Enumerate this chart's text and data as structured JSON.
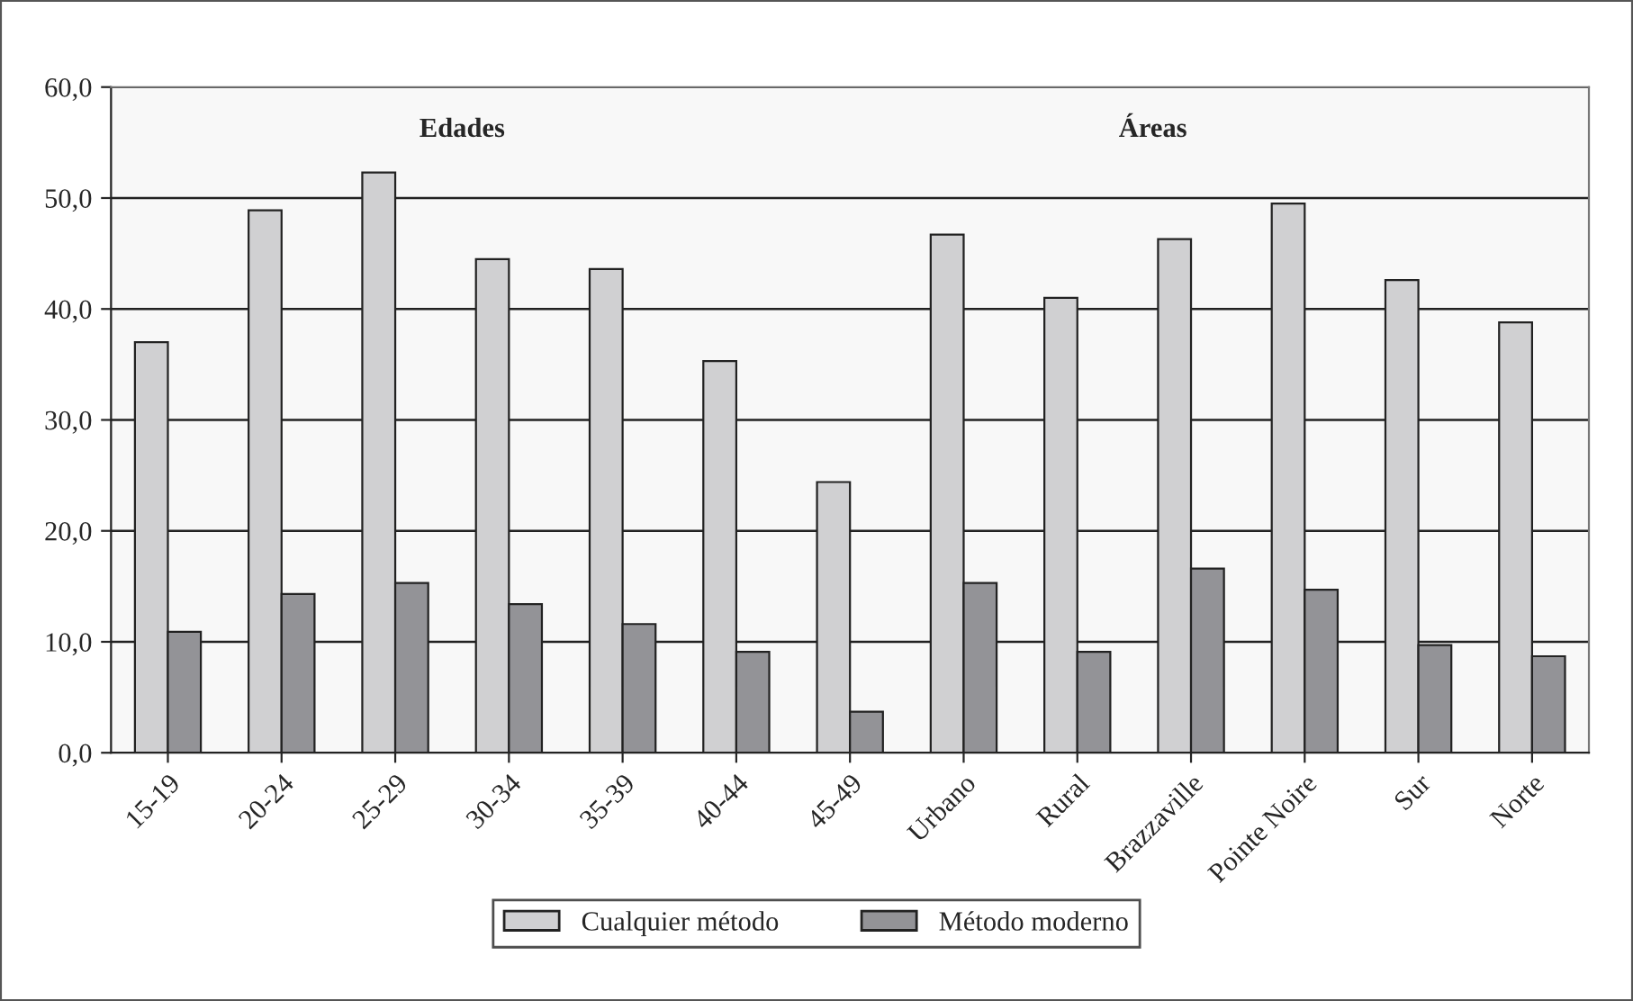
{
  "chart_data": {
    "type": "bar",
    "categories": [
      "15-19",
      "20-24",
      "25-29",
      "30-34",
      "35-39",
      "40-44",
      "45-49",
      "Urbano",
      "Rural",
      "Brazzaville",
      "Pointe Noire",
      "Sur",
      "Norte"
    ],
    "series": [
      {
        "name": "Cualquier método",
        "color": "#d0d0d2",
        "values": [
          37.0,
          48.9,
          52.3,
          44.5,
          43.6,
          35.3,
          24.4,
          46.7,
          41.0,
          46.3,
          49.5,
          42.6,
          38.8
        ]
      },
      {
        "name": "Método moderno",
        "color": "#939397",
        "values": [
          10.9,
          14.3,
          15.3,
          13.4,
          11.6,
          9.1,
          3.7,
          15.3,
          9.1,
          16.6,
          14.7,
          9.7,
          8.7
        ]
      }
    ],
    "annotations": [
      "Edades",
      "Áreas"
    ],
    "ylim": [
      0,
      60
    ],
    "yticks": [
      {
        "value": 0,
        "label": "0,0"
      },
      {
        "value": 10,
        "label": "10,0"
      },
      {
        "value": 20,
        "label": "20,0"
      },
      {
        "value": 30,
        "label": "30,0"
      },
      {
        "value": 40,
        "label": "40,0"
      },
      {
        "value": 50,
        "label": "50,0"
      },
      {
        "value": 60,
        "label": "60,0"
      }
    ],
    "grid": "y",
    "legend": "bottom"
  }
}
